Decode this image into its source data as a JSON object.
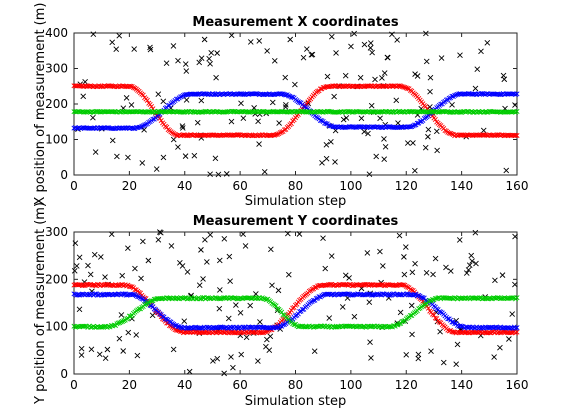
{
  "chart_data": [
    {
      "type": "scatter",
      "title": "Measurement X coordinates",
      "xlabel": "Simulation step",
      "ylabel": "X position of measurement (m)",
      "xlim": [
        0,
        160
      ],
      "ylim": [
        0,
        400
      ],
      "xticks": [
        "0",
        "20",
        "40",
        "60",
        "80",
        "100",
        "120",
        "140",
        "160"
      ],
      "yticks": [
        "0",
        "100",
        "200",
        "300",
        "400"
      ],
      "grid": false,
      "tracks": [
        {
          "color": "#ff0000",
          "segments": [
            [
              0,
              250
            ],
            [
              20,
              250
            ],
            [
              38,
              112
            ],
            [
              72,
              112
            ],
            [
              92,
              250
            ],
            [
              118,
              250
            ],
            [
              138,
              112
            ],
            [
              160,
              112
            ]
          ]
        },
        {
          "color": "#0000ff",
          "segments": [
            [
              0,
              132
            ],
            [
              22,
              132
            ],
            [
              42,
              228
            ],
            [
              75,
              228
            ],
            [
              95,
              135
            ],
            [
              120,
              135
            ],
            [
              140,
              228
            ],
            [
              160,
              228
            ]
          ]
        },
        {
          "color": "#00cc00",
          "segments": [
            [
              0,
              178
            ],
            [
              160,
              178
            ]
          ]
        }
      ],
      "clutter_count": 160,
      "clutter_color": "#000000"
    },
    {
      "type": "scatter",
      "title": "Measurement Y coordinates",
      "xlabel": "Simulation step",
      "ylabel": "Y position of measurement (m)",
      "xlim": [
        0,
        160
      ],
      "ylim": [
        0,
        300
      ],
      "xticks": [
        "0",
        "20",
        "40",
        "60",
        "80",
        "100",
        "120",
        "140",
        "160"
      ],
      "yticks": [
        "0",
        "100",
        "200",
        "300"
      ],
      "grid": false,
      "tracks": [
        {
          "color": "#ff0000",
          "segments": [
            [
              0,
              188
            ],
            [
              18,
              188
            ],
            [
              40,
              88
            ],
            [
              68,
              88
            ],
            [
              90,
              188
            ],
            [
              118,
              188
            ],
            [
              138,
              88
            ],
            [
              160,
              88
            ]
          ]
        },
        {
          "color": "#0000ff",
          "segments": [
            [
              0,
              168
            ],
            [
              20,
              168
            ],
            [
              40,
              98
            ],
            [
              72,
              98
            ],
            [
              92,
              168
            ],
            [
              122,
              168
            ],
            [
              142,
              98
            ],
            [
              160,
              98
            ]
          ]
        },
        {
          "color": "#00cc00",
          "segments": [
            [
              0,
              100
            ],
            [
              12,
              100
            ],
            [
              32,
              160
            ],
            [
              68,
              160
            ],
            [
              82,
              100
            ],
            [
              114,
              100
            ],
            [
              132,
              160
            ],
            [
              160,
              160
            ]
          ]
        }
      ],
      "clutter_count": 160,
      "clutter_color": "#000000"
    }
  ]
}
